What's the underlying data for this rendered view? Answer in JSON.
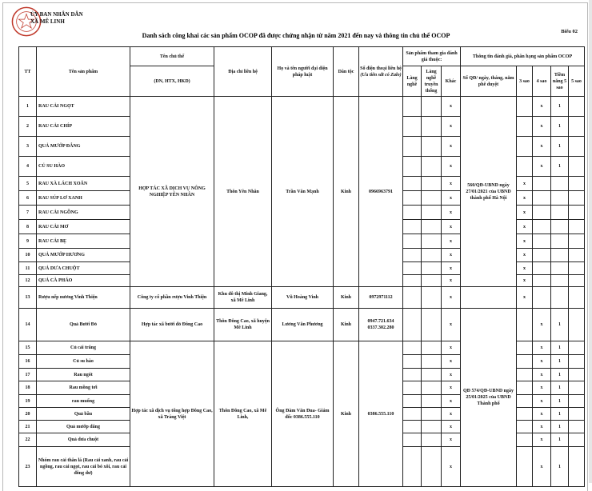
{
  "header": {
    "agency_line1": "ỦY BAN NHÂN DÂN",
    "agency_line2": "XÃ MÊ LINH",
    "form_number": "Biểu 02",
    "title": "Danh sách công khai các sản phẩm OCOP đã được chứng nhận từ năm 2021 đến nay và thông tin chủ thể OCOP",
    "seal_color": "#c0392b"
  },
  "columns": {
    "tt": "TT",
    "product": "Tên sản phẩm",
    "owner": "Tên chủ thể",
    "owner_sub": "(DN, HTX, HKD)",
    "address": "Địa chỉ liên hệ",
    "representative": "Họ và tên người đại diện pháp luật",
    "ethnicity": "Dân tộc",
    "phone": "Số điện thoại liên hệ",
    "phone_note": "(Ưu tiên sđt có Zalo)",
    "participation": "Sản phẩm tham gia đánh giá thuộc:",
    "craft_village": "Làng nghề",
    "traditional_village": "Làng nghề truyền thống",
    "other": "Khác",
    "rating_info": "Thông tin đánh giá, phân hạng sản phẩm OCOP",
    "decision": "Số QĐ/ ngày, tháng, năm phê duyệt",
    "star3": "3 sao",
    "star4": "4 sao",
    "potential5": "Tiềm năng 5 sao",
    "star5": "5 sao"
  },
  "rows": [
    {
      "tt": "1",
      "name": "RAU CẢI NGỌT",
      "align": "left",
      "other": "x",
      "s3": "",
      "s4": "x",
      "p5": "1",
      "s5": ""
    },
    {
      "tt": "2",
      "name": "RAU CẢI CHÍP",
      "align": "left",
      "other": "x",
      "s3": "",
      "s4": "x",
      "p5": "1",
      "s5": ""
    },
    {
      "tt": "3",
      "name": "QUẢ MƯỚP ĐẮNG",
      "align": "left",
      "other": "x",
      "s3": "",
      "s4": "x",
      "p5": "1",
      "s5": ""
    },
    {
      "tt": "4",
      "name": "CỦ SU HÀO",
      "align": "left",
      "other": "x",
      "s3": "",
      "s4": "x",
      "p5": "1",
      "s5": ""
    },
    {
      "tt": "5",
      "name": "RAU XÀ LÁCH XOĂN",
      "align": "left",
      "other": "x",
      "s3": "x",
      "s4": "",
      "p5": "",
      "s5": ""
    },
    {
      "tt": "6",
      "name": "RAU SÚP LƠ XANH",
      "align": "left",
      "other": "x",
      "s3": "x",
      "s4": "",
      "p5": "",
      "s5": ""
    },
    {
      "tt": "7",
      "name": "RAU CẢI NGỒNG",
      "align": "left",
      "other": "x",
      "s3": "x",
      "s4": "",
      "p5": "",
      "s5": ""
    },
    {
      "tt": "8",
      "name": "RAU CẢI MƠ",
      "align": "left",
      "other": "x",
      "s3": "x",
      "s4": "",
      "p5": "",
      "s5": ""
    },
    {
      "tt": "9",
      "name": "RAU CẢI BẸ",
      "align": "left",
      "other": "x",
      "s3": "x",
      "s4": "",
      "p5": "",
      "s5": ""
    },
    {
      "tt": "10",
      "name": "QUẢ MƯỚP HƯƠNG",
      "align": "left",
      "other": "x",
      "s3": "x",
      "s4": "",
      "p5": "",
      "s5": ""
    },
    {
      "tt": "11",
      "name": "QUẢ DƯA CHUỘT",
      "align": "left",
      "other": "x",
      "s3": "x",
      "s4": "",
      "p5": "",
      "s5": ""
    },
    {
      "tt": "12",
      "name": "QUẢ CÀ PHÁO",
      "align": "left",
      "other": "x",
      "s3": "x",
      "s4": "",
      "p5": "",
      "s5": ""
    },
    {
      "tt": "13",
      "name": "Rượu nếp nương Vinh Thiện",
      "align": "left",
      "other": "x",
      "s3": "x",
      "s4": "",
      "p5": "",
      "s5": ""
    },
    {
      "tt": "14",
      "name": "Quả Bưởi Đỏ",
      "align": "center",
      "other": "x",
      "s3": "",
      "s4": "x",
      "p5": "1",
      "s5": ""
    },
    {
      "tt": "15",
      "name": "Củ cải trắng",
      "align": "center",
      "other": "x",
      "s3": "",
      "s4": "x",
      "p5": "1",
      "s5": ""
    },
    {
      "tt": "16",
      "name": "Củ su hào",
      "align": "center",
      "other": "x",
      "s3": "",
      "s4": "x",
      "p5": "1",
      "s5": ""
    },
    {
      "tt": "17",
      "name": "Rau ngót",
      "align": "center",
      "other": "x",
      "s3": "",
      "s4": "x",
      "p5": "1",
      "s5": ""
    },
    {
      "tt": "18",
      "name": "Rau mồng tơi",
      "align": "center",
      "other": "x",
      "s3": "",
      "s4": "x",
      "p5": "1",
      "s5": ""
    },
    {
      "tt": "19",
      "name": "rau muống",
      "align": "center",
      "other": "x",
      "s3": "",
      "s4": "x",
      "p5": "1",
      "s5": ""
    },
    {
      "tt": "20",
      "name": "Quả bầu",
      "align": "center",
      "other": "x",
      "s3": "",
      "s4": "x",
      "p5": "1",
      "s5": ""
    },
    {
      "tt": "21",
      "name": "Quả mướp đắng",
      "align": "center",
      "other": "x",
      "s3": "",
      "s4": "x",
      "p5": "1",
      "s5": ""
    },
    {
      "tt": "22",
      "name": "Quả dưa chuột",
      "align": "center",
      "other": "x",
      "s3": "",
      "s4": "x",
      "p5": "1",
      "s5": ""
    },
    {
      "tt": "23",
      "name": "Nhóm rau cải thân lá (Rau cải xanh, rau cải ngồng, rau cải ngọt, rau cải bó xôi, rau cải đông dư)",
      "align": "center",
      "other": "x",
      "s3": "",
      "s4": "x",
      "p5": "1",
      "s5": ""
    }
  ],
  "owners": [
    {
      "start": 0,
      "span": 12,
      "owner": "HỢP TÁC XÃ DỊCH VỤ NÔNG NGHIỆP YÊN NHÂN",
      "address": "Thôn Yên Nhân",
      "representative": "Trần Văn Mạnh",
      "ethnicity": "Kinh",
      "phone": "0966963791"
    },
    {
      "start": 12,
      "span": 1,
      "owner": "Công ty cổ phần rượu Vinh Thiện",
      "address": "Khu đô thị Minh Giang, xã Mê Linh",
      "representative": "Vũ Hoàng Vinh",
      "ethnicity": "Kinh",
      "phone": "0972971112"
    },
    {
      "start": 13,
      "span": 1,
      "owner": "Hợp tác xã bưởi đỏ Đông Cao",
      "address": "Thôn Đông Cao, xã huyện Mê Linh",
      "representative": "Lương Văn Phương",
      "ethnicity": "Kinh",
      "phone": "0947.721.634 0337.302.280"
    },
    {
      "start": 14,
      "span": 9,
      "owner": "Hợp tác xã dịch vụ tổng hợp Đông Cao, xã Tráng Việt",
      "address": "Thôn Đông Cao, xã Mê Linh,",
      "representative": "Ông Đàm Văn Đua- Giám đốc 0386.555.110",
      "ethnicity": "Kinh",
      "phone": "0386.555.110"
    }
  ],
  "decisions": [
    {
      "start": 0,
      "span": 12,
      "text": "560/QĐ-UBND ngày 27/01/2021 của UBND thành phố Hà Nội"
    },
    {
      "start": 12,
      "span": 1,
      "text": ""
    },
    {
      "start": 13,
      "span": 10,
      "text": "QĐ 574/QĐ-UBND ngày 25/01/2025 của UBND Thành phố"
    }
  ]
}
